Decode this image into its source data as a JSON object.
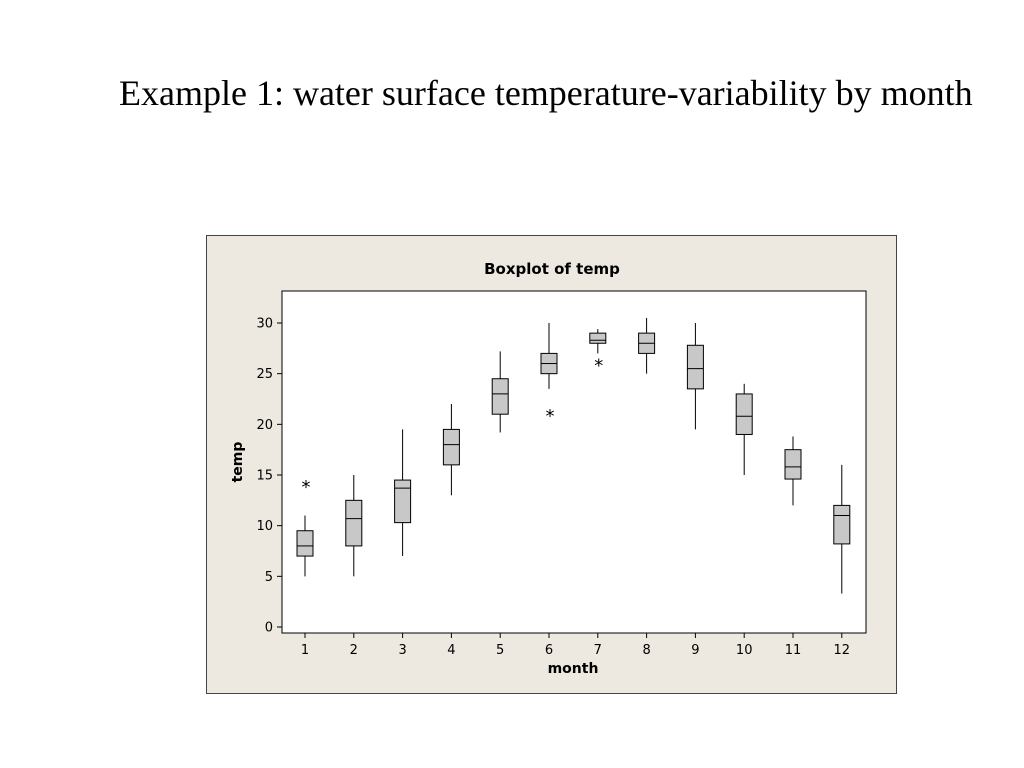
{
  "slide": {
    "title": "Example 1: water surface temperature-variability by month"
  },
  "chart_data": {
    "type": "boxplot",
    "title": "Boxplot of temp",
    "xlabel": "month",
    "ylabel": "temp",
    "ylim": [
      0,
      32
    ],
    "yticks": [
      0,
      5,
      10,
      15,
      20,
      25,
      30
    ],
    "categories": [
      "1",
      "2",
      "3",
      "4",
      "5",
      "6",
      "7",
      "8",
      "9",
      "10",
      "11",
      "12"
    ],
    "boxes": [
      {
        "month": "1",
        "min": 5,
        "q1": 7,
        "median": 8,
        "q3": 9.5,
        "max": 11,
        "outliers": [
          14
        ]
      },
      {
        "month": "2",
        "min": 5,
        "q1": 8,
        "median": 10.7,
        "q3": 12.5,
        "max": 15,
        "outliers": []
      },
      {
        "month": "3",
        "min": 7,
        "q1": 10.3,
        "median": 13.7,
        "q3": 14.5,
        "max": 19.5,
        "outliers": []
      },
      {
        "month": "4",
        "min": 13,
        "q1": 16,
        "median": 18,
        "q3": 19.5,
        "max": 22,
        "outliers": []
      },
      {
        "month": "5",
        "min": 19.2,
        "q1": 21,
        "median": 23,
        "q3": 24.5,
        "max": 27.2,
        "outliers": []
      },
      {
        "month": "6",
        "min": 23.5,
        "q1": 25,
        "median": 26,
        "q3": 27,
        "max": 30,
        "outliers": [
          21
        ]
      },
      {
        "month": "7",
        "min": 27,
        "q1": 28,
        "median": 28.3,
        "q3": 29,
        "max": 29.4,
        "outliers": [
          26
        ]
      },
      {
        "month": "8",
        "min": 25,
        "q1": 27,
        "median": 28,
        "q3": 29,
        "max": 30.5,
        "outliers": []
      },
      {
        "month": "9",
        "min": 19.5,
        "q1": 23.5,
        "median": 25.5,
        "q3": 27.8,
        "max": 30,
        "outliers": []
      },
      {
        "month": "10",
        "min": 15,
        "q1": 19,
        "median": 20.8,
        "q3": 23,
        "max": 24,
        "outliers": []
      },
      {
        "month": "11",
        "min": 12,
        "q1": 14.6,
        "median": 15.8,
        "q3": 17.5,
        "max": 18.8,
        "outliers": []
      },
      {
        "month": "12",
        "min": 3.3,
        "q1": 8.2,
        "median": 11,
        "q3": 12,
        "max": 16,
        "outliers": []
      }
    ],
    "grid": false,
    "colors": {
      "box_fill": "#c8c8c8",
      "frame_bg": "#ede9e0",
      "plot_bg": "#ffffff",
      "stroke": "#000000"
    }
  }
}
